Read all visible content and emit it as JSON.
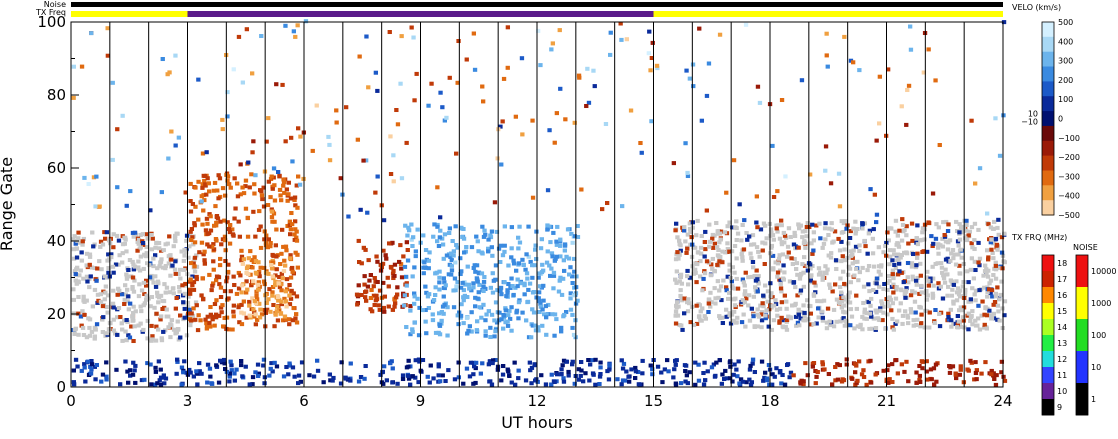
{
  "chart_data": {
    "type": "heatmap",
    "xlabel": "UT hours",
    "ylabel": "Range Gate",
    "xlim": [
      0,
      24
    ],
    "ylim": [
      0,
      100
    ],
    "x_ticks": [
      "0",
      "3",
      "6",
      "9",
      "12",
      "15",
      "18",
      "21",
      "24"
    ],
    "y_ticks": [
      "0",
      "20",
      "40",
      "60",
      "80",
      "100"
    ],
    "grid": "vertical lines every hour",
    "ground_scatter_color": "#c8c8c8",
    "top_bars": {
      "noise_label": "Noise",
      "txfreq_label": "TX Freq",
      "txfreq_segments": [
        {
          "x0": 0,
          "x1": 3,
          "freq_mhz": 15,
          "color": "#ffff00"
        },
        {
          "x0": 3,
          "x1": 15,
          "freq_mhz": 10,
          "color": "#5a1a8a"
        },
        {
          "x0": 15,
          "x1": 24,
          "freq_mhz": 15,
          "color": "#ffff00"
        }
      ]
    },
    "velocity_colorbar": {
      "title": "VELO (km/s)",
      "labels": [
        "500",
        "400",
        "300",
        "200",
        "100",
        "0",
        "−100",
        "−200",
        "−300",
        "−400",
        "−500"
      ],
      "side_labels": [
        "10",
        "−10"
      ],
      "colors_top_to_bottom": [
        "#d4f0ff",
        "#a8d8f5",
        "#6cb4ec",
        "#3a8ae0",
        "#1c5ac8",
        "#0a2a9a",
        "#001070",
        "#6a0a0a",
        "#9a1a08",
        "#c03a08",
        "#e06a10",
        "#f0a040",
        "#fad0a0"
      ]
    },
    "txfreq_colorbar": {
      "title": "TX FRQ (MHz)",
      "labels": [
        "18",
        "17",
        "16",
        "15",
        "14",
        "13",
        "12",
        "11",
        "10",
        "9"
      ],
      "colors_top_to_bottom": [
        "#ee1111",
        "#cc2200",
        "#ff8800",
        "#ffff00",
        "#aaff22",
        "#22ee44",
        "#22dddd",
        "#3344ff",
        "#662299",
        "#000000"
      ]
    },
    "noise_colorbar": {
      "title": "NOISE",
      "labels": [
        "10000",
        "1000",
        "100",
        "10",
        "1"
      ],
      "colors_top_to_bottom": [
        "#ee1111",
        "#ffff00",
        "#22dd22",
        "#2233ff",
        "#000000"
      ]
    },
    "features": [
      {
        "kind": "ground_scatter",
        "x": [
          0,
          3.2
        ],
        "gates": [
          12,
          42
        ],
        "description_color": "gray"
      },
      {
        "kind": "ground_scatter",
        "x": [
          15.5,
          24
        ],
        "gates": [
          15,
          45
        ],
        "description_color": "gray"
      },
      {
        "kind": "negative_velocity",
        "x": [
          3.0,
          5.8
        ],
        "gates": [
          15,
          58
        ],
        "velocity_kms": -250
      },
      {
        "kind": "negative_velocity_high",
        "x": [
          4.3,
          5.6
        ],
        "gates": [
          18,
          35
        ],
        "velocity_kms": -420
      },
      {
        "kind": "negative_velocity",
        "x": [
          7.3,
          8.7
        ],
        "gates": [
          20,
          40
        ],
        "velocity_kms": -180
      },
      {
        "kind": "positive_velocity",
        "x": [
          8.5,
          13.0
        ],
        "gates": [
          13,
          44
        ],
        "velocity_kms": 300
      },
      {
        "kind": "positive_velocity_low",
        "x": [
          0,
          18.5
        ],
        "gates": [
          0,
          7
        ],
        "velocity_kms": 80
      },
      {
        "kind": "negative_velocity_low",
        "x": [
          18.5,
          24
        ],
        "gates": [
          0,
          7
        ],
        "velocity_kms": -150
      }
    ]
  }
}
